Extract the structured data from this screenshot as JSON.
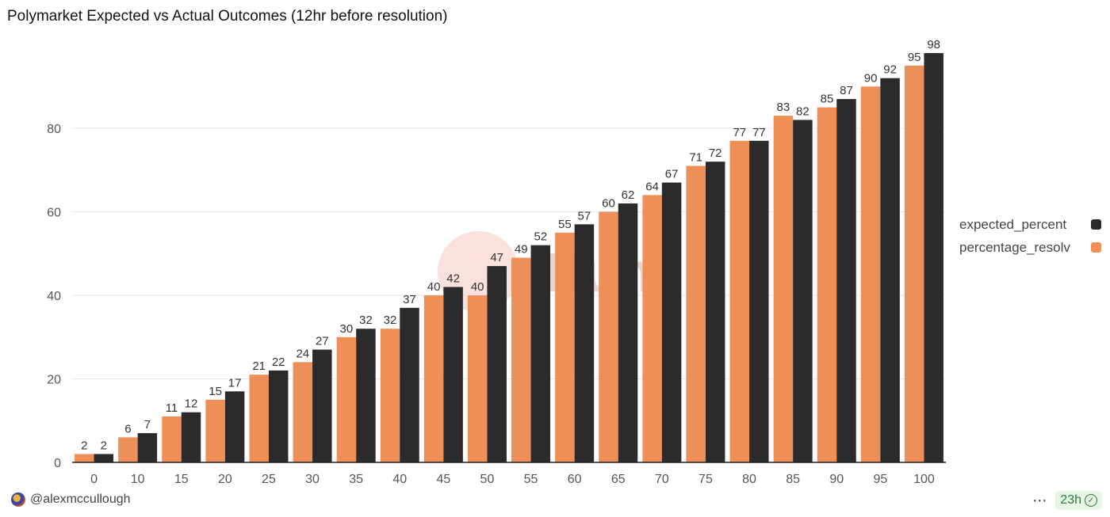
{
  "title": "Polymarket Expected vs Actual Outcomes (12hr before resolution)",
  "watermark": "Dune",
  "footer": {
    "author": "@alexmccullough",
    "more_label": "⋯",
    "refresh_label": "23h",
    "refresh_icon": "check-circle-icon"
  },
  "legend": {
    "items": [
      {
        "label": "expected_percent",
        "color": "#2b2b2b"
      },
      {
        "label": "percentage_resolv",
        "color": "#ed8f57"
      }
    ]
  },
  "chart_data": {
    "type": "bar",
    "categories": [
      "0",
      "10",
      "15",
      "20",
      "25",
      "30",
      "35",
      "40",
      "45",
      "50",
      "55",
      "60",
      "65",
      "70",
      "75",
      "80",
      "85",
      "90",
      "95",
      "100"
    ],
    "series": [
      {
        "name": "percentage_resolv",
        "color": "#ed8f57",
        "values": [
          2,
          6,
          11,
          15,
          21,
          24,
          30,
          32,
          40,
          40,
          49,
          55,
          60,
          64,
          71,
          77,
          83,
          85,
          90,
          95
        ]
      },
      {
        "name": "expected_percent",
        "color": "#2b2b2b",
        "values": [
          2,
          7,
          12,
          17,
          22,
          27,
          32,
          37,
          42,
          47,
          52,
          57,
          62,
          67,
          72,
          77,
          82,
          87,
          92,
          98
        ]
      }
    ],
    "yticks": [
      0,
      20,
      40,
      60,
      80
    ],
    "ylim": [
      0,
      100
    ],
    "grid": true,
    "legend_position": "right"
  }
}
